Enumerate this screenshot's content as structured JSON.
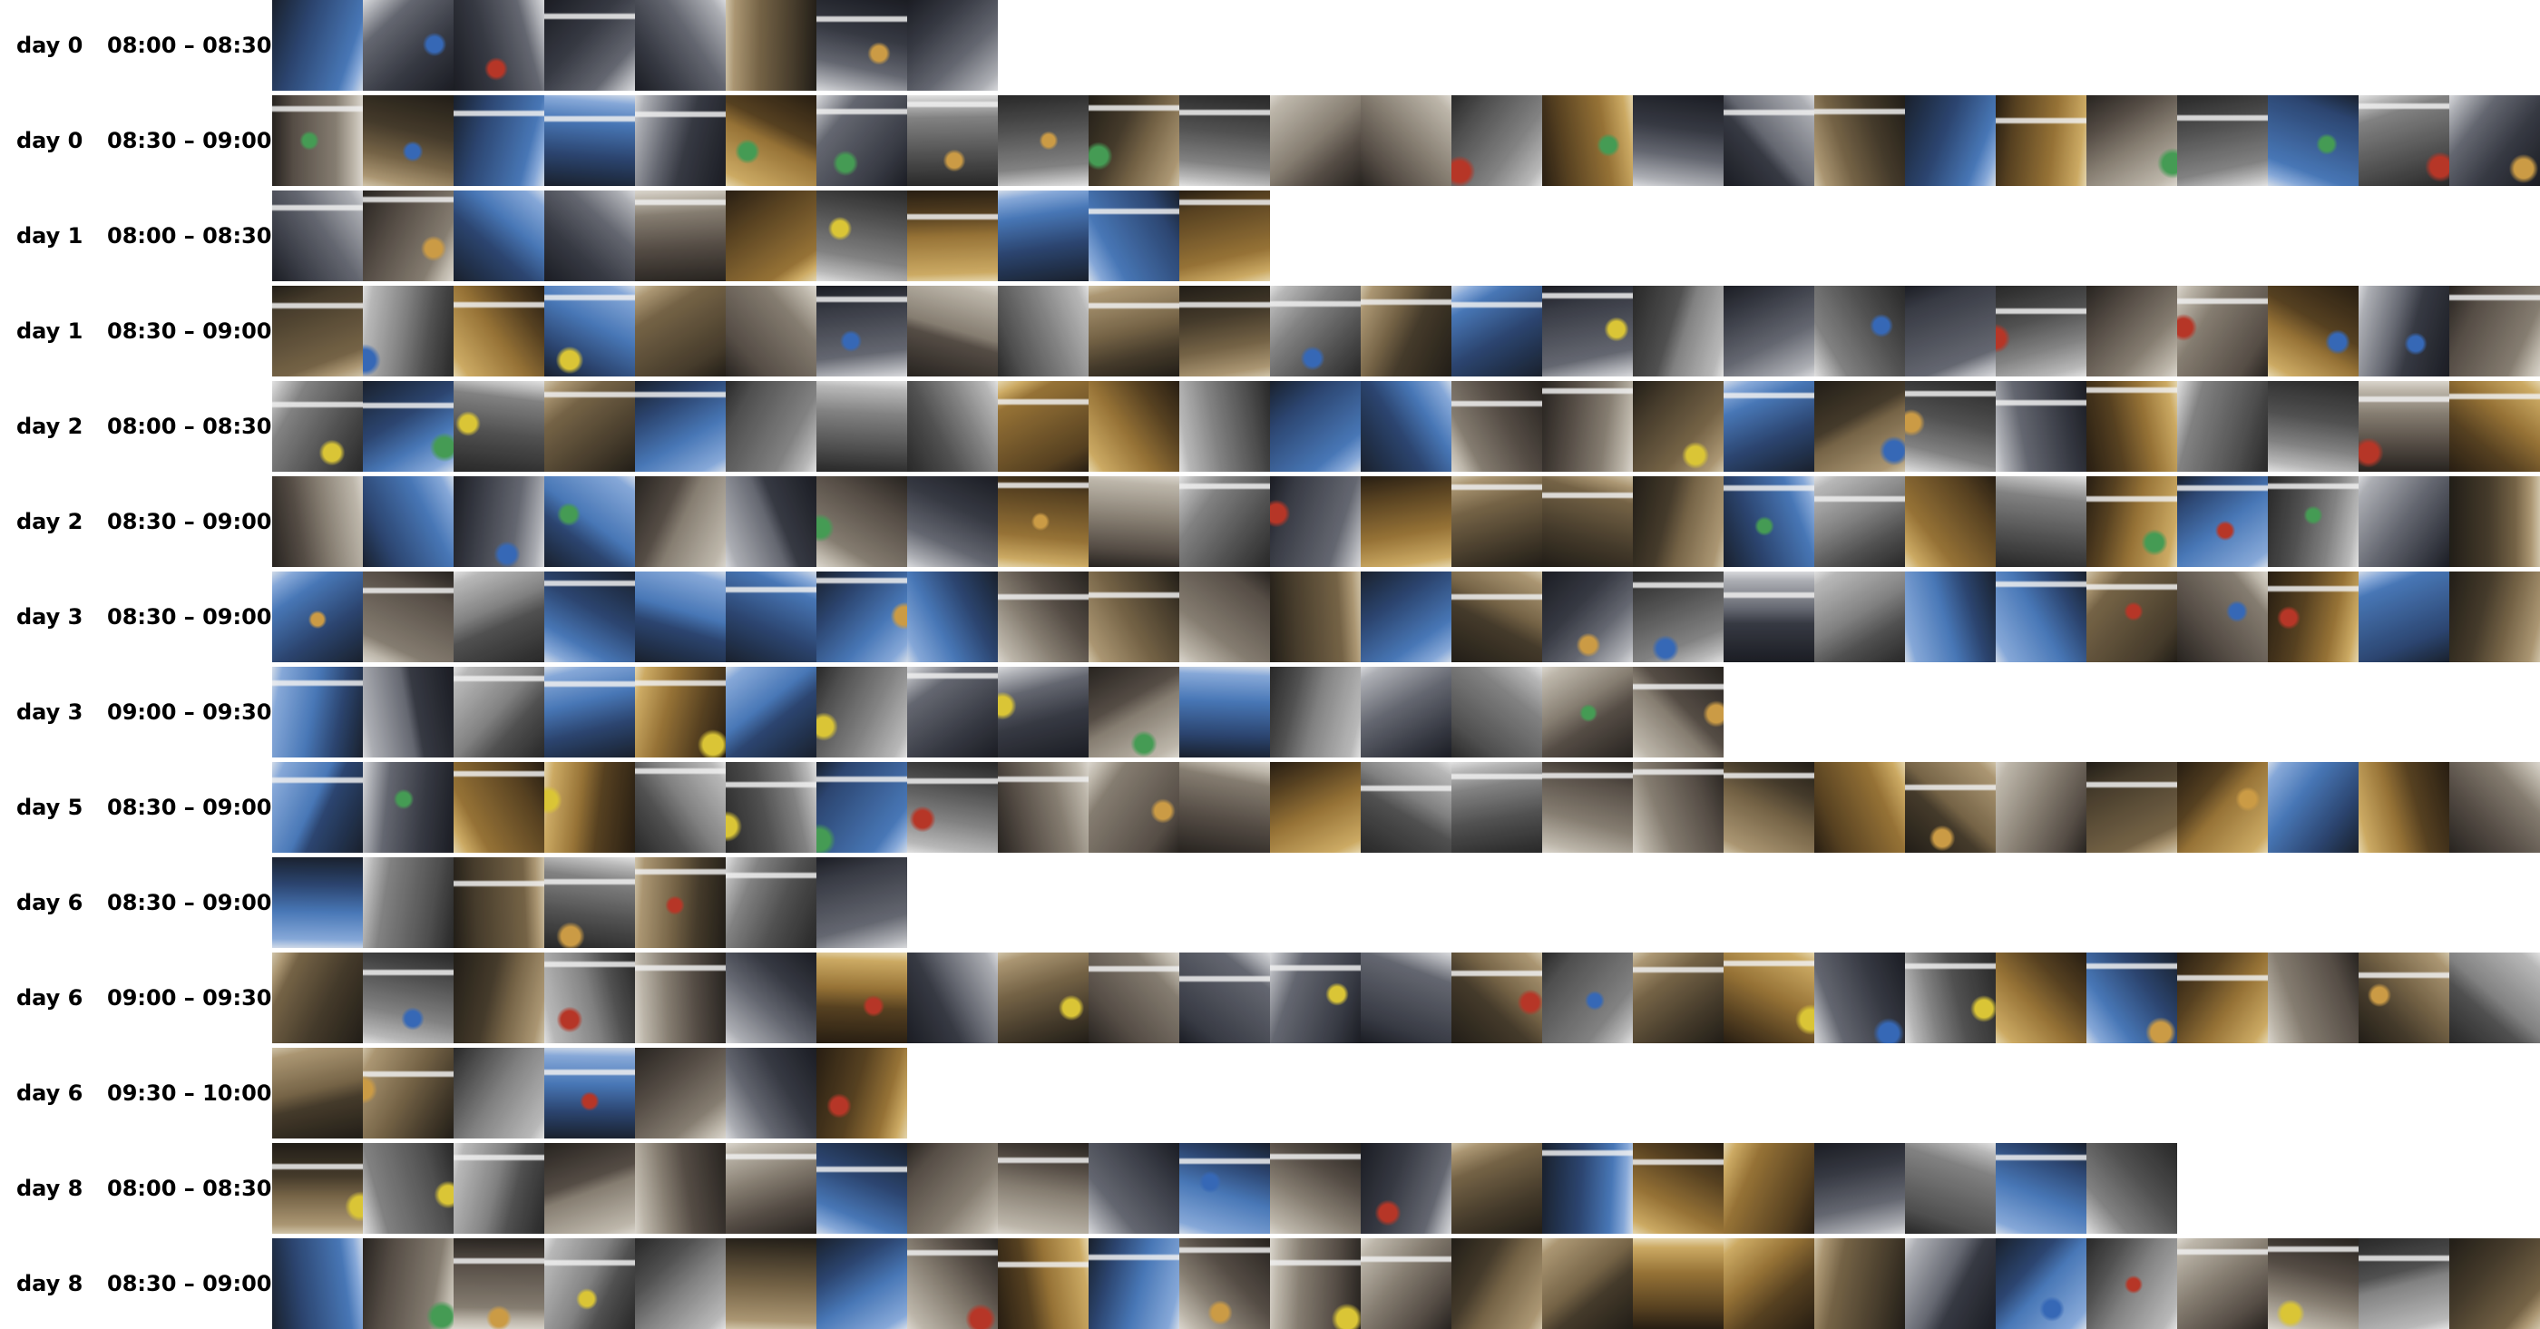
{
  "rows": [
    {
      "day": "day 0",
      "time": "08:00 – 08:30",
      "frames": 8
    },
    {
      "day": "day 0",
      "time": "08:30 – 09:00",
      "frames": 25
    },
    {
      "day": "day 1",
      "time": "08:00 – 08:30",
      "frames": 11
    },
    {
      "day": "day 1",
      "time": "08:30 – 09:00",
      "frames": 25
    },
    {
      "day": "day 2",
      "time": "08:00 – 08:30",
      "frames": 25
    },
    {
      "day": "day 2",
      "time": "08:30 – 09:00",
      "frames": 25
    },
    {
      "day": "day 3",
      "time": "08:30 – 09:00",
      "frames": 25
    },
    {
      "day": "day 3",
      "time": "09:00 – 09:30",
      "frames": 16
    },
    {
      "day": "day 5",
      "time": "08:30 – 09:00",
      "frames": 25
    },
    {
      "day": "day 6",
      "time": "08:30 – 09:00",
      "frames": 7
    },
    {
      "day": "day 6",
      "time": "09:00 – 09:30",
      "frames": 25
    },
    {
      "day": "day 6",
      "time": "09:30 – 10:00",
      "frames": 7
    },
    {
      "day": "day 8",
      "time": "08:00 – 08:30",
      "frames": 21
    },
    {
      "day": "day 8",
      "time": "08:30 – 09:00",
      "frames": 25
    }
  ],
  "colors": {
    "background": "#ffffff",
    "label_text": "#000000"
  }
}
